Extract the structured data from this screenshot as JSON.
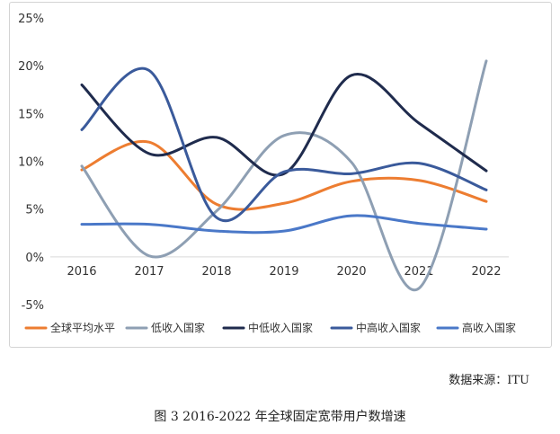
{
  "chart_data": {
    "type": "line",
    "categories": [
      "2016",
      "2017",
      "2018",
      "2019",
      "2020",
      "2021",
      "2022"
    ],
    "ylim": [
      -5,
      25
    ],
    "y_ticks": [
      "25%",
      "20%",
      "15%",
      "10%",
      "5%",
      "0%",
      "-5%"
    ],
    "y_tick_values": [
      25,
      20,
      15,
      10,
      5,
      0,
      -5
    ],
    "grid": false,
    "legend_position": "bottom",
    "smooth": true,
    "series": [
      {
        "name": "全球平均水平",
        "color": "#ed7d31",
        "values": [
          9.1,
          12.0,
          5.5,
          5.6,
          7.9,
          8.0,
          5.8
        ]
      },
      {
        "name": "低收入国家",
        "color": "#8e9fb3",
        "values": [
          9.5,
          0.1,
          4.8,
          12.7,
          9.9,
          -3.3,
          20.5
        ]
      },
      {
        "name": "中低收入国家",
        "color": "#1f2b4d",
        "values": [
          18.0,
          10.8,
          12.5,
          8.7,
          19.0,
          14.0,
          9.0
        ]
      },
      {
        "name": "中高收入国家",
        "color": "#3a5a9b",
        "values": [
          13.3,
          19.5,
          4.1,
          8.9,
          8.7,
          9.8,
          7.0
        ]
      },
      {
        "name": "高收入国家",
        "color": "#4a78c8",
        "values": [
          3.4,
          3.4,
          2.7,
          2.7,
          4.3,
          3.5,
          2.9
        ]
      }
    ]
  },
  "source_text": "数据来源：ITU",
  "caption": "图  3 2016-2022 年全球固定宽带用户数增速"
}
